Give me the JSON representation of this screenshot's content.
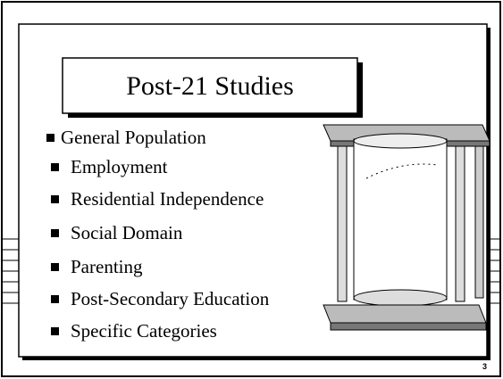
{
  "title": "Post-21 Studies",
  "bullets": [
    "General Population",
    "Employment",
    "Residential Independence",
    "Social Domain",
    "Parenting",
    "Post-Secondary Education",
    "Specific Categories"
  ],
  "page_number": "3"
}
